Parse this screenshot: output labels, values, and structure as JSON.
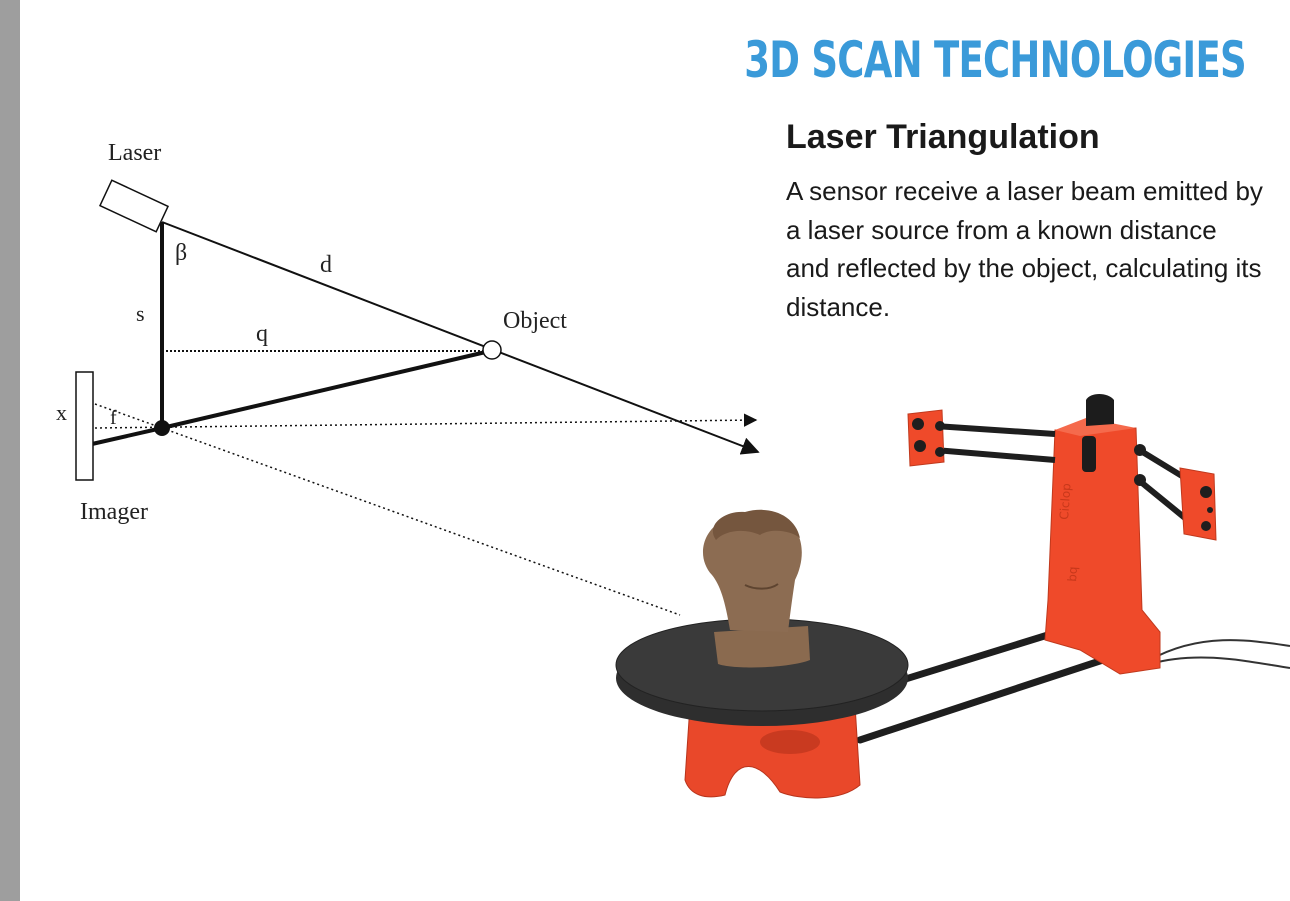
{
  "slide": {
    "title": "3D SCAN TECHNOLOGIES",
    "subtitle": "Laser Triangulation",
    "description": "A sensor receive a laser beam emitted by a laser source from a known distance and reflected by the object, calculating its distance."
  },
  "diagram": {
    "labels": {
      "laser": "Laser",
      "beta": "β",
      "d": "d",
      "s": "s",
      "q": "q",
      "object": "Object",
      "x": "x",
      "f": "f",
      "imager": "Imager"
    }
  },
  "photo": {
    "subject": "3D scanner with turntable and bust",
    "body_text": [
      "Ciclop",
      "bq"
    ]
  },
  "colors": {
    "title": "#3a9ad9",
    "scanner_red": "#ef4a2a",
    "left_bar": "#9e9e9e"
  }
}
